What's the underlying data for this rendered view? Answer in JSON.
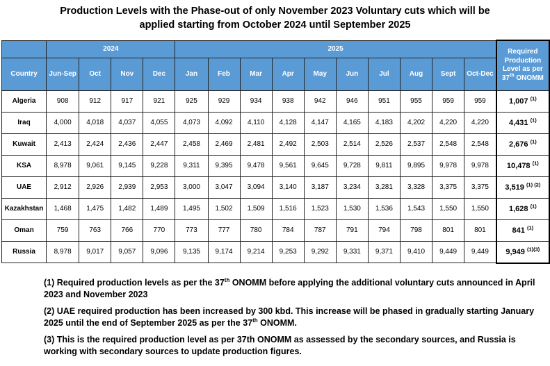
{
  "title": {
    "line1": "Production Levels with the Phase-out of only November 2023 Voluntary cuts which will be",
    "line2": "applied starting from October 2024 until September 2025"
  },
  "table": {
    "year_2024": "2024",
    "year_2025": "2025",
    "country_header": "Country",
    "columns": [
      "Jun-Sep",
      "Oct",
      "Nov",
      "Dec",
      "Jan",
      "Feb",
      "Mar",
      "Apr",
      "May",
      "Jun",
      "Jul",
      "Aug",
      "Sept",
      "Oct-Dec"
    ],
    "required_header": {
      "text": "Required Production Level as per 37",
      "sup": "th",
      "suffix": " ONOMM"
    },
    "rows": [
      {
        "country": "Algeria",
        "values": [
          "908",
          "912",
          "917",
          "921",
          "925",
          "929",
          "934",
          "938",
          "942",
          "946",
          "951",
          "955",
          "959",
          "959"
        ],
        "required": "1,007",
        "note": "(1)"
      },
      {
        "country": "Iraq",
        "values": [
          "4,000",
          "4,018",
          "4,037",
          "4,055",
          "4,073",
          "4,092",
          "4,110",
          "4,128",
          "4,147",
          "4,165",
          "4,183",
          "4,202",
          "4,220",
          "4,220"
        ],
        "required": "4,431",
        "note": "(1)"
      },
      {
        "country": "Kuwait",
        "values": [
          "2,413",
          "2,424",
          "2,436",
          "2,447",
          "2,458",
          "2,469",
          "2,481",
          "2,492",
          "2,503",
          "2,514",
          "2,526",
          "2,537",
          "2,548",
          "2,548"
        ],
        "required": "2,676",
        "note": "(1)"
      },
      {
        "country": "KSA",
        "values": [
          "8,978",
          "9,061",
          "9,145",
          "9,228",
          "9,311",
          "9,395",
          "9,478",
          "9,561",
          "9,645",
          "9,728",
          "9,811",
          "9,895",
          "9,978",
          "9,978"
        ],
        "required": "10,478",
        "note": "(1)"
      },
      {
        "country": "UAE",
        "values": [
          "2,912",
          "2,926",
          "2,939",
          "2,953",
          "3,000",
          "3,047",
          "3,094",
          "3,140",
          "3,187",
          "3,234",
          "3,281",
          "3,328",
          "3,375",
          "3,375"
        ],
        "required": "3,519",
        "note": "(1) (2)"
      },
      {
        "country": "Kazakhstan",
        "values": [
          "1,468",
          "1,475",
          "1,482",
          "1,489",
          "1,495",
          "1,502",
          "1,509",
          "1,516",
          "1,523",
          "1,530",
          "1,536",
          "1,543",
          "1,550",
          "1,550"
        ],
        "required": "1,628",
        "note": "(1)"
      },
      {
        "country": "Oman",
        "values": [
          "759",
          "763",
          "766",
          "770",
          "773",
          "777",
          "780",
          "784",
          "787",
          "791",
          "794",
          "798",
          "801",
          "801"
        ],
        "required": "841",
        "note": "(1)"
      },
      {
        "country": "Russia",
        "values": [
          "8,978",
          "9,017",
          "9,057",
          "9,096",
          "9,135",
          "9,174",
          "9,214",
          "9,253",
          "9,292",
          "9,331",
          "9,371",
          "9,410",
          "9,449",
          "9,449"
        ],
        "required": "9,949",
        "note": "(1)(3)"
      }
    ]
  },
  "notes": {
    "n1": {
      "before": "(1) Required production levels as per the 37",
      "sup": "th",
      "after": " ONOMM before applying the additional voluntary cuts announced in April 2023 and November 2023"
    },
    "n2": {
      "before": "(2) UAE required production has been increased by 300 kbd. This increase will be phased in gradually starting January 2025 until the end of September 2025 as per the 37",
      "sup": "th",
      "after": " ONOMM."
    },
    "n3": {
      "text": "(3) This is the required production level as per 37th ONOMM as assessed by the secondary sources, and Russia is working with secondary sources to update production figures."
    }
  }
}
